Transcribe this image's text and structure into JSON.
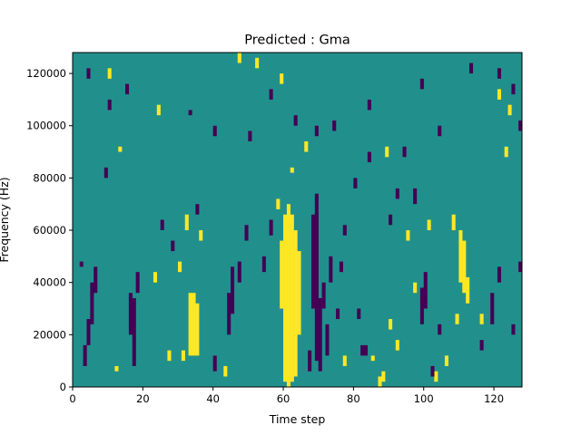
{
  "chart_data": {
    "type": "heatmap",
    "title": "Predicted : Gma",
    "xlabel": "Time step",
    "ylabel": "Frequency (Hz)",
    "xlim": [
      0,
      128
    ],
    "ylim": [
      0,
      128000
    ],
    "xticks": [
      "0",
      "20",
      "40",
      "60",
      "80",
      "100",
      "120"
    ],
    "yticks": [
      "0",
      "20000",
      "40000",
      "60000",
      "80000",
      "100000",
      "120000"
    ],
    "grid": false,
    "legend": "none",
    "colormap": "viridis",
    "colors": {
      "background": "#21908d",
      "high": "#fde725",
      "low": "#440154",
      "axis": "#000000"
    },
    "n_time_steps": 128,
    "n_freq_bins": 128,
    "freq_bin_hz": 1000,
    "spans_note": "Each span is [time_step, freq_start_hz, freq_end_hz] for a non-background cell run",
    "high_spans": [
      [
        60,
        2000,
        66000
      ],
      [
        61,
        0,
        70000
      ],
      [
        62,
        2000,
        66000
      ],
      [
        63,
        4000,
        60000
      ],
      [
        59,
        30000,
        56000
      ],
      [
        64,
        20000,
        52000
      ],
      [
        33,
        12000,
        36000
      ],
      [
        34,
        12000,
        36000
      ],
      [
        35,
        12000,
        32000
      ],
      [
        32,
        60000,
        66000
      ],
      [
        36,
        56000,
        60000
      ],
      [
        108,
        60000,
        66000
      ],
      [
        110,
        40000,
        60000
      ],
      [
        111,
        36000,
        56000
      ],
      [
        112,
        32000,
        42000
      ],
      [
        109,
        24000,
        28000
      ],
      [
        87,
        0,
        4000
      ],
      [
        88,
        2000,
        6000
      ],
      [
        85,
        10000,
        12000
      ],
      [
        90,
        22000,
        26000
      ],
      [
        92,
        14000,
        18000
      ],
      [
        101,
        60000,
        64000
      ],
      [
        95,
        56000,
        60000
      ],
      [
        59,
        116000,
        120000
      ],
      [
        52,
        122000,
        126000
      ],
      [
        47,
        124000,
        128000
      ],
      [
        10,
        118000,
        122000
      ],
      [
        62,
        82000,
        84000
      ],
      [
        58,
        68000,
        72000
      ],
      [
        66,
        90000,
        94000
      ],
      [
        89,
        88000,
        92000
      ],
      [
        24,
        104000,
        108000
      ],
      [
        121,
        110000,
        114000
      ],
      [
        123,
        88000,
        92000
      ],
      [
        124,
        104000,
        108000
      ],
      [
        23,
        40000,
        44000
      ],
      [
        30,
        44000,
        48000
      ],
      [
        97,
        36000,
        40000
      ],
      [
        116,
        24000,
        28000
      ],
      [
        12,
        6000,
        8000
      ],
      [
        27,
        10000,
        14000
      ],
      [
        31,
        10000,
        14000
      ],
      [
        43,
        4000,
        8000
      ],
      [
        106,
        8000,
        12000
      ],
      [
        103,
        2000,
        6000
      ],
      [
        13,
        90000,
        92000
      ],
      [
        77,
        8000,
        12000
      ]
    ],
    "low_spans": [
      [
        68,
        30000,
        66000
      ],
      [
        69,
        10000,
        74000
      ],
      [
        70,
        6000,
        34000
      ],
      [
        71,
        30000,
        40000
      ],
      [
        67,
        6000,
        14000
      ],
      [
        72,
        12000,
        24000
      ],
      [
        3,
        8000,
        16000
      ],
      [
        4,
        16000,
        26000
      ],
      [
        5,
        24000,
        40000
      ],
      [
        6,
        36000,
        46000
      ],
      [
        2,
        46000,
        48000
      ],
      [
        17,
        8000,
        34000
      ],
      [
        16,
        20000,
        36000
      ],
      [
        18,
        36000,
        44000
      ],
      [
        40,
        6000,
        12000
      ],
      [
        44,
        20000,
        36000
      ],
      [
        45,
        28000,
        46000
      ],
      [
        47,
        40000,
        48000
      ],
      [
        49,
        56000,
        62000
      ],
      [
        54,
        44000,
        50000
      ],
      [
        56,
        58000,
        64000
      ],
      [
        73,
        40000,
        50000
      ],
      [
        75,
        26000,
        30000
      ],
      [
        76,
        44000,
        48000
      ],
      [
        77,
        58000,
        62000
      ],
      [
        82,
        12000,
        16000
      ],
      [
        83,
        12000,
        16000
      ],
      [
        81,
        26000,
        30000
      ],
      [
        99,
        24000,
        38000
      ],
      [
        100,
        30000,
        44000
      ],
      [
        102,
        4000,
        8000
      ],
      [
        104,
        20000,
        24000
      ],
      [
        116,
        14000,
        18000
      ],
      [
        119,
        24000,
        36000
      ],
      [
        121,
        40000,
        46000
      ],
      [
        125,
        20000,
        24000
      ],
      [
        127,
        44000,
        48000
      ],
      [
        127,
        98000,
        102000
      ],
      [
        125,
        112000,
        116000
      ],
      [
        121,
        118000,
        122000
      ],
      [
        90,
        62000,
        66000
      ],
      [
        92,
        72000,
        76000
      ],
      [
        97,
        70000,
        76000
      ],
      [
        94,
        88000,
        92000
      ],
      [
        84,
        86000,
        90000
      ],
      [
        80,
        76000,
        80000
      ],
      [
        74,
        98000,
        102000
      ],
      [
        69,
        96000,
        100000
      ],
      [
        4,
        118000,
        122000
      ],
      [
        10,
        106000,
        110000
      ],
      [
        15,
        112000,
        116000
      ],
      [
        33,
        104000,
        106000
      ],
      [
        40,
        96000,
        100000
      ],
      [
        50,
        94000,
        98000
      ],
      [
        56,
        110000,
        114000
      ],
      [
        63,
        100000,
        104000
      ],
      [
        84,
        106000,
        110000
      ],
      [
        99,
        114000,
        118000
      ],
      [
        104,
        96000,
        100000
      ],
      [
        113,
        120000,
        124000
      ],
      [
        25,
        60000,
        64000
      ],
      [
        28,
        52000,
        56000
      ],
      [
        35,
        66000,
        70000
      ],
      [
        9,
        80000,
        84000
      ]
    ]
  }
}
